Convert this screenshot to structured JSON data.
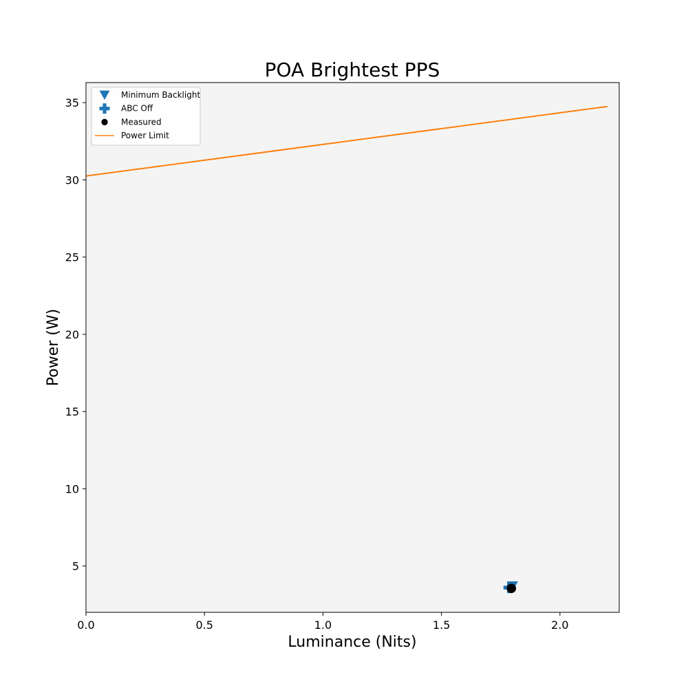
{
  "chart_data": {
    "type": "scatter",
    "title": "POA Brightest PPS",
    "xlabel": "Luminance (Nits)",
    "ylabel": "Power (W)",
    "xlim": [
      0,
      2.25
    ],
    "ylim": [
      2.0,
      36.3
    ],
    "xticks": [
      0.0,
      0.5,
      1.0,
      1.5,
      2.0
    ],
    "xtick_labels": [
      "0.0",
      "0.5",
      "1.0",
      "1.5",
      "2.0"
    ],
    "yticks": [
      5,
      10,
      15,
      20,
      25,
      30,
      35
    ],
    "ytick_labels": [
      "5",
      "10",
      "15",
      "20",
      "25",
      "30",
      "35"
    ],
    "grid": false,
    "legend_position": "top-left",
    "background": "#f4f4f4",
    "series": [
      {
        "name": "Minimum Backlight",
        "kind": "scatter",
        "marker": "triangle-down",
        "color": "#1f77b4",
        "points": [
          [
            1.8,
            3.7
          ]
        ]
      },
      {
        "name": "ABC Off",
        "kind": "scatter",
        "marker": "plus",
        "color": "#1f77b4",
        "points": [
          [
            1.785,
            3.6
          ]
        ]
      },
      {
        "name": "Measured",
        "kind": "scatter",
        "marker": "circle",
        "color": "#000000",
        "points": [
          [
            1.795,
            3.55
          ]
        ]
      },
      {
        "name": "Power Limit",
        "kind": "line",
        "color": "#ff7f0e",
        "points": [
          [
            0.0,
            30.25
          ],
          [
            2.2,
            34.75
          ]
        ]
      }
    ]
  }
}
